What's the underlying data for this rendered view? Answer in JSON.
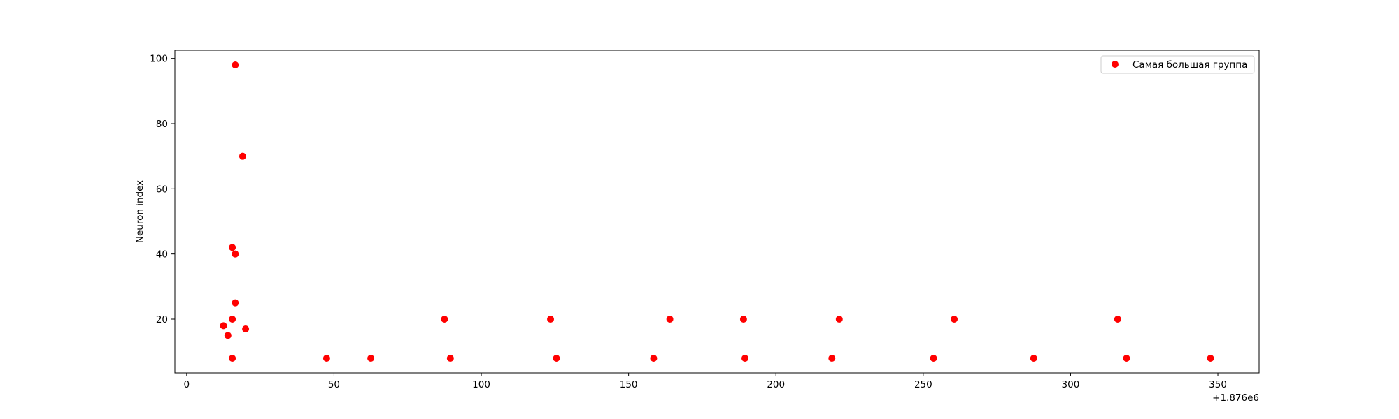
{
  "chart_data": {
    "type": "scatter",
    "title": "",
    "xlabel": "",
    "ylabel": "Neuron index",
    "x_offset_label": "+1.876e6",
    "xlim": [
      -4,
      364
    ],
    "ylim": [
      3.5,
      102.5
    ],
    "x_ticks": [
      0,
      50,
      100,
      150,
      200,
      250,
      300,
      350
    ],
    "y_ticks": [
      20,
      40,
      60,
      80,
      100
    ],
    "grid": false,
    "legend_position": "upper right",
    "color": "#ff0000",
    "series": [
      {
        "name": "Самая большая группа",
        "points": [
          {
            "x": 12.5,
            "y": 18
          },
          {
            "x": 14,
            "y": 15
          },
          {
            "x": 15.5,
            "y": 8
          },
          {
            "x": 15.5,
            "y": 20
          },
          {
            "x": 15.5,
            "y": 42
          },
          {
            "x": 16.5,
            "y": 98
          },
          {
            "x": 16.5,
            "y": 25
          },
          {
            "x": 16.5,
            "y": 40
          },
          {
            "x": 19,
            "y": 70
          },
          {
            "x": 20,
            "y": 17
          },
          {
            "x": 47.5,
            "y": 8
          },
          {
            "x": 62.5,
            "y": 8
          },
          {
            "x": 87.5,
            "y": 20
          },
          {
            "x": 89.5,
            "y": 8
          },
          {
            "x": 123.5,
            "y": 20
          },
          {
            "x": 125.5,
            "y": 8
          },
          {
            "x": 158.5,
            "y": 8
          },
          {
            "x": 164,
            "y": 20
          },
          {
            "x": 189,
            "y": 20
          },
          {
            "x": 189.5,
            "y": 8
          },
          {
            "x": 219,
            "y": 8
          },
          {
            "x": 221.5,
            "y": 20
          },
          {
            "x": 253.5,
            "y": 8
          },
          {
            "x": 260.5,
            "y": 20
          },
          {
            "x": 287.5,
            "y": 8
          },
          {
            "x": 316,
            "y": 20
          },
          {
            "x": 319,
            "y": 8
          },
          {
            "x": 347.5,
            "y": 8
          }
        ]
      }
    ]
  }
}
